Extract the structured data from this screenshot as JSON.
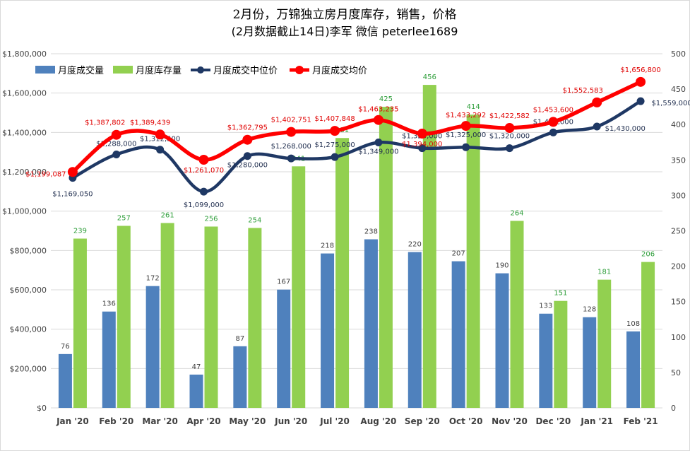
{
  "chart_data": {
    "type": "bar+line",
    "title": "2月份，万锦独立房月度库存，销售，价格",
    "subtitle": "(2月数据截止14日)李军 微信 peterlee1689",
    "categories": [
      "Jan '20",
      "Feb '20",
      "Mar '20",
      "Apr '20",
      "May '20",
      "Jun '20",
      "Jul '20",
      "Aug '20",
      "Sep '20",
      "Oct '20",
      "Nov '20",
      "Dec '20",
      "Jan '21",
      "Feb '21"
    ],
    "left_axis": {
      "ylim": [
        0,
        1800000
      ],
      "ticks": [
        "$0",
        "$200,000",
        "$400,000",
        "$600,000",
        "$800,000",
        "$1,000,000",
        "$1,200,000",
        "$1,400,000",
        "$1,600,000",
        "$1,800,000"
      ]
    },
    "right_axis": {
      "ylim": [
        0,
        500
      ],
      "ticks": [
        "0",
        "50",
        "100",
        "150",
        "200",
        "250",
        "300",
        "350",
        "400",
        "450",
        "500"
      ]
    },
    "grid": true,
    "legend_position": "top-left",
    "series": [
      {
        "name": "月度成交量",
        "kind": "bar",
        "axis": "right",
        "color": "#4f81bd",
        "values": [
          76,
          136,
          172,
          47,
          87,
          167,
          218,
          238,
          220,
          207,
          190,
          133,
          128,
          108
        ],
        "labels": [
          "76",
          "136",
          "172",
          "47",
          "87",
          "167",
          "218",
          "238",
          "220",
          "207",
          "190",
          "133",
          "128",
          "108"
        ]
      },
      {
        "name": "月度库存量",
        "kind": "bar",
        "axis": "right",
        "color": "#92d050",
        "values": [
          239,
          257,
          261,
          256,
          254,
          341,
          381,
          425,
          456,
          414,
          264,
          151,
          181,
          206
        ],
        "labels": [
          "239",
          "257",
          "261",
          "256",
          "254",
          "341",
          "381",
          "425",
          "456",
          "414",
          "264",
          "151",
          "181",
          "206"
        ]
      },
      {
        "name": "月度成交中位价",
        "kind": "line",
        "axis": "left",
        "color": "#1f3864",
        "values": [
          1169050,
          1288000,
          1312500,
          1099000,
          1280000,
          1268000,
          1275000,
          1349000,
          1320000,
          1325000,
          1320000,
          1400000,
          1430000,
          1559000
        ],
        "labels": [
          "$1,169,050",
          "$1,288,000",
          "$1,312,500",
          "$1,099,000",
          "$1,280,000",
          "$1,268,000",
          "$1,275,000",
          "$1,349,000",
          "$1,320,000",
          "$1,325,000",
          "$1,320,000",
          "$1,400,000",
          "$1,430,000",
          "$1,559,000"
        ]
      },
      {
        "name": "月度成交均价",
        "kind": "line",
        "axis": "left",
        "color": "#ff0000",
        "values": [
          1199087,
          1387802,
          1389439,
          1261070,
          1362795,
          1402751,
          1407848,
          1463235,
          1394000,
          1433292,
          1422582,
          1453600,
          1552583,
          1656800
        ],
        "labels": [
          "$1,199,087",
          "$1,387,802",
          "$1,389,439",
          "$1,261,070",
          "$1,362,795",
          "$1,402,751",
          "$1,407,848",
          "$1,463,235",
          "$1,394,000",
          "$1,433,292",
          "$1,422,582",
          "$1,453,600",
          "$1,552,583",
          "$1,656,800"
        ]
      }
    ]
  }
}
